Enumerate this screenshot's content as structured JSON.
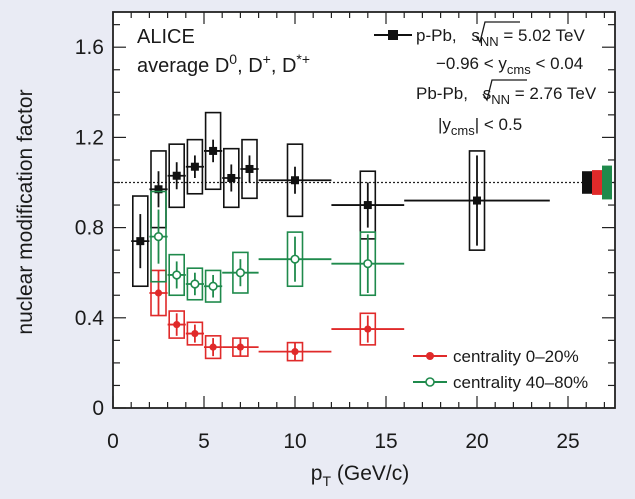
{
  "chart_data": {
    "type": "scatter",
    "xlabel_main": "p",
    "xlabel_sub": "T",
    "xlabel_unit": " (GeV/c)",
    "ylabel": "nuclear modification factor",
    "xlim": [
      0,
      28
    ],
    "ylim": [
      0,
      1.76
    ],
    "xticks": [
      0,
      5,
      10,
      15,
      20,
      25
    ],
    "yticks": [
      0,
      0.4,
      0.8,
      1.2,
      1.6
    ],
    "xtick_labels": [
      "0",
      "5",
      "10",
      "15",
      "20",
      "25"
    ],
    "ytick_labels": [
      "0",
      "0.4",
      "0.8",
      "1.2",
      "1.6"
    ],
    "reference_line": 1.0,
    "annotations": {
      "experiment": "ALICE",
      "average_prefix": "average D",
      "average_sup0": "0",
      "average_mid1": ", D",
      "average_sup1": "+",
      "average_mid2": ", D",
      "average_sup2": "*+",
      "ppb_prefix": "p-Pb, ",
      "ppb_s": "s",
      "ppb_sub": "NN",
      "ppb_value": " = 5.02 TeV",
      "ppb_y_lo": "−0.96 < y",
      "ppb_y_sub": "cms",
      "ppb_y_hi": " < 0.04",
      "pbpb_prefix": "Pb-Pb, ",
      "pbpb_s": "s",
      "pbpb_sub": "NN",
      "pbpb_value": " = 2.76 TeV",
      "pbpb_y_lo": "|y",
      "pbpb_y_sub": "cms",
      "pbpb_y_hi": "| < 0.5"
    },
    "series": [
      {
        "name": "p-Pb",
        "color": "#111111",
        "marker": "square",
        "points": [
          {
            "x": 1.5,
            "y": 0.74,
            "xlo": 1.0,
            "xhi": 2.0,
            "stat": 0.12,
            "sys": 0.2
          },
          {
            "x": 2.5,
            "y": 0.97,
            "xlo": 2.0,
            "xhi": 3.0,
            "stat": 0.08,
            "sys": 0.17
          },
          {
            "x": 3.5,
            "y": 1.03,
            "xlo": 3.0,
            "xhi": 4.0,
            "stat": 0.06,
            "sys": 0.14
          },
          {
            "x": 4.5,
            "y": 1.07,
            "xlo": 4.0,
            "xhi": 5.0,
            "stat": 0.05,
            "sys": 0.12
          },
          {
            "x": 5.5,
            "y": 1.14,
            "xlo": 5.0,
            "xhi": 6.0,
            "stat": 0.05,
            "sys": 0.17
          },
          {
            "x": 6.5,
            "y": 1.02,
            "xlo": 6.0,
            "xhi": 7.0,
            "stat": 0.06,
            "sys": 0.13
          },
          {
            "x": 7.5,
            "y": 1.06,
            "xlo": 7.0,
            "xhi": 8.0,
            "stat": 0.06,
            "sys": 0.13
          },
          {
            "x": 10.0,
            "y": 1.01,
            "xlo": 8.0,
            "xhi": 12.0,
            "stat": 0.06,
            "sys": 0.16
          },
          {
            "x": 14.0,
            "y": 0.9,
            "xlo": 12.0,
            "xhi": 16.0,
            "stat": 0.1,
            "sys": 0.15
          },
          {
            "x": 20.0,
            "y": 0.92,
            "xlo": 16.0,
            "xhi": 24.0,
            "stat": 0.2,
            "sys": 0.22
          }
        ]
      },
      {
        "name": "centrality 0–20%",
        "color": "#e02a2a",
        "marker": "filled-circle",
        "points": [
          {
            "x": 2.5,
            "y": 0.51,
            "xlo": 2.0,
            "xhi": 3.0,
            "stat": 0.1,
            "sys": 0.1
          },
          {
            "x": 3.5,
            "y": 0.37,
            "xlo": 3.0,
            "xhi": 4.0,
            "stat": 0.05,
            "sys": 0.06
          },
          {
            "x": 4.5,
            "y": 0.33,
            "xlo": 4.0,
            "xhi": 5.0,
            "stat": 0.04,
            "sys": 0.05
          },
          {
            "x": 5.5,
            "y": 0.27,
            "xlo": 5.0,
            "xhi": 6.0,
            "stat": 0.04,
            "sys": 0.05
          },
          {
            "x": 7.0,
            "y": 0.27,
            "xlo": 6.0,
            "xhi": 8.0,
            "stat": 0.04,
            "sys": 0.04
          },
          {
            "x": 10.0,
            "y": 0.25,
            "xlo": 8.0,
            "xhi": 12.0,
            "stat": 0.04,
            "sys": 0.04
          },
          {
            "x": 14.0,
            "y": 0.35,
            "xlo": 12.0,
            "xhi": 16.0,
            "stat": 0.06,
            "sys": 0.07
          }
        ]
      },
      {
        "name": "centrality 40–80%",
        "color": "#1f8a4c",
        "marker": "open-circle",
        "points": [
          {
            "x": 2.5,
            "y": 0.76,
            "xlo": 2.0,
            "xhi": 3.0,
            "stat": 0.12,
            "sys": 0.2
          },
          {
            "x": 3.5,
            "y": 0.59,
            "xlo": 3.0,
            "xhi": 4.0,
            "stat": 0.06,
            "sys": 0.09
          },
          {
            "x": 4.5,
            "y": 0.55,
            "xlo": 4.0,
            "xhi": 5.0,
            "stat": 0.05,
            "sys": 0.07
          },
          {
            "x": 5.5,
            "y": 0.54,
            "xlo": 5.0,
            "xhi": 6.0,
            "stat": 0.05,
            "sys": 0.07
          },
          {
            "x": 7.0,
            "y": 0.6,
            "xlo": 6.0,
            "xhi": 8.0,
            "stat": 0.06,
            "sys": 0.09
          },
          {
            "x": 10.0,
            "y": 0.66,
            "xlo": 8.0,
            "xhi": 12.0,
            "stat": 0.1,
            "sys": 0.12
          },
          {
            "x": 14.0,
            "y": 0.64,
            "xlo": 12.0,
            "xhi": 16.0,
            "stat": 0.13,
            "sys": 0.14
          }
        ]
      }
    ],
    "normalization_boxes": [
      {
        "series": "p-Pb",
        "color": "#111111",
        "center": 1.0,
        "half": 0.05
      },
      {
        "series": "centrality 0–20%",
        "color": "#e02a2a",
        "center": 1.0,
        "half": 0.055
      },
      {
        "series": "centrality 40–80%",
        "color": "#1f8a4c",
        "center": 1.0,
        "half": 0.075
      }
    ],
    "legend": [
      {
        "label": "p-Pb",
        "marker": "square",
        "color": "#111111"
      },
      {
        "label": "centrality 0–20%",
        "marker": "filled-circle",
        "color": "#e02a2a"
      },
      {
        "label": "centrality 40–80%",
        "marker": "open-circle",
        "color": "#1f8a4c"
      }
    ]
  }
}
